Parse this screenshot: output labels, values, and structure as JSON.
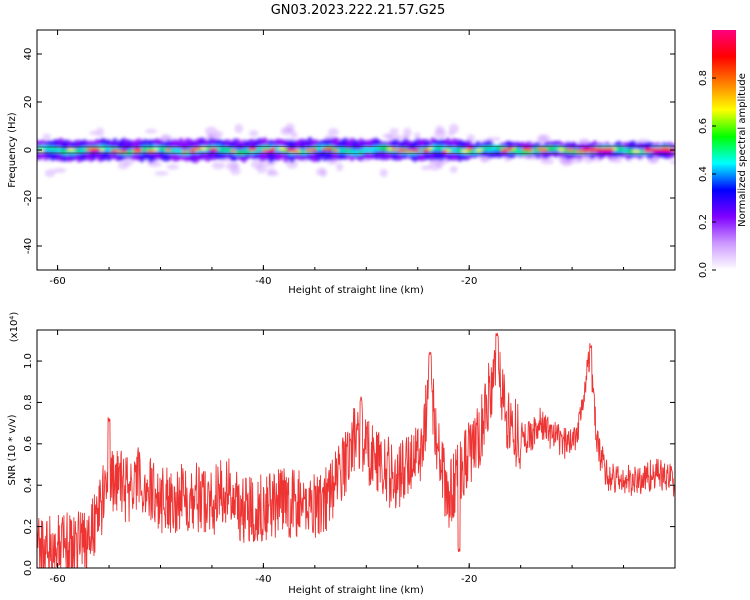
{
  "title": "GN03.2023.222.21.57.G25",
  "chart_data": [
    {
      "type": "heatmap",
      "xlabel": "Height of straight line (km)",
      "ylabel": "Frequency (Hz)",
      "xlim": [
        -62,
        0
      ],
      "ylim": [
        -50,
        50
      ],
      "xticks": [
        -60,
        -40,
        -20
      ],
      "yticks": [
        -40,
        -20,
        0,
        20,
        40
      ],
      "ridge_frequency": 0,
      "colorbar": {
        "label": "Normalized spectral amplitude",
        "range": [
          0,
          1
        ],
        "ticks": [
          "0.0",
          "0.2",
          "0.4",
          "0.6",
          "0.8"
        ],
        "colors": [
          "#ffffff",
          "#cc99ff",
          "#7f00ff",
          "#0000ff",
          "#00ffff",
          "#00ff00",
          "#ffff00",
          "#ff7f00",
          "#ff0000",
          "#ff007f"
        ]
      }
    },
    {
      "type": "line",
      "xlabel": "Height of straight line (km)",
      "ylabel": "SNR (10 * v/v)",
      "yscale_label": "(x10⁴)",
      "xlim": [
        -62,
        0
      ],
      "ylim": [
        0,
        1.15
      ],
      "xticks": [
        -60,
        -40,
        -20
      ],
      "yticks": [
        "0.0",
        "0.2",
        "0.4",
        "0.6",
        "0.8",
        "1.0"
      ],
      "color": "#ee3333",
      "envelope": {
        "x": [
          -62,
          -59,
          -57,
          -55.5,
          -54.5,
          -53,
          -52,
          -50,
          -47,
          -45,
          -43.5,
          -42,
          -40,
          -38,
          -36,
          -34,
          -32.5,
          -31,
          -29.5,
          -28.5,
          -27,
          -26,
          -24.5,
          -23.8,
          -23,
          -22,
          -21,
          -20,
          -19,
          -18,
          -17.3,
          -16,
          -14.5,
          -13,
          -11.5,
          -10.5,
          -9.5,
          -8.3,
          -7.5,
          -6.5,
          -5,
          -3.5,
          -2,
          0
        ],
        "y": [
          0.08,
          0.1,
          0.15,
          0.35,
          0.42,
          0.38,
          0.42,
          0.33,
          0.35,
          0.32,
          0.38,
          0.28,
          0.3,
          0.32,
          0.3,
          0.33,
          0.46,
          0.65,
          0.55,
          0.5,
          0.42,
          0.5,
          0.6,
          0.95,
          0.55,
          0.32,
          0.48,
          0.55,
          0.62,
          0.85,
          0.95,
          0.68,
          0.62,
          0.7,
          0.62,
          0.6,
          0.66,
          1.02,
          0.58,
          0.44,
          0.42,
          0.42,
          0.46,
          0.42
        ]
      },
      "spikes": [
        {
          "x": -55.0,
          "y": 0.73
        },
        {
          "x": -23.8,
          "y": 1.05
        },
        {
          "x": -17.3,
          "y": 1.14
        },
        {
          "x": -8.2,
          "y": 1.09
        },
        {
          "x": -30.5,
          "y": 0.83
        },
        {
          "x": -21.0,
          "y": 0.1
        }
      ]
    }
  ]
}
